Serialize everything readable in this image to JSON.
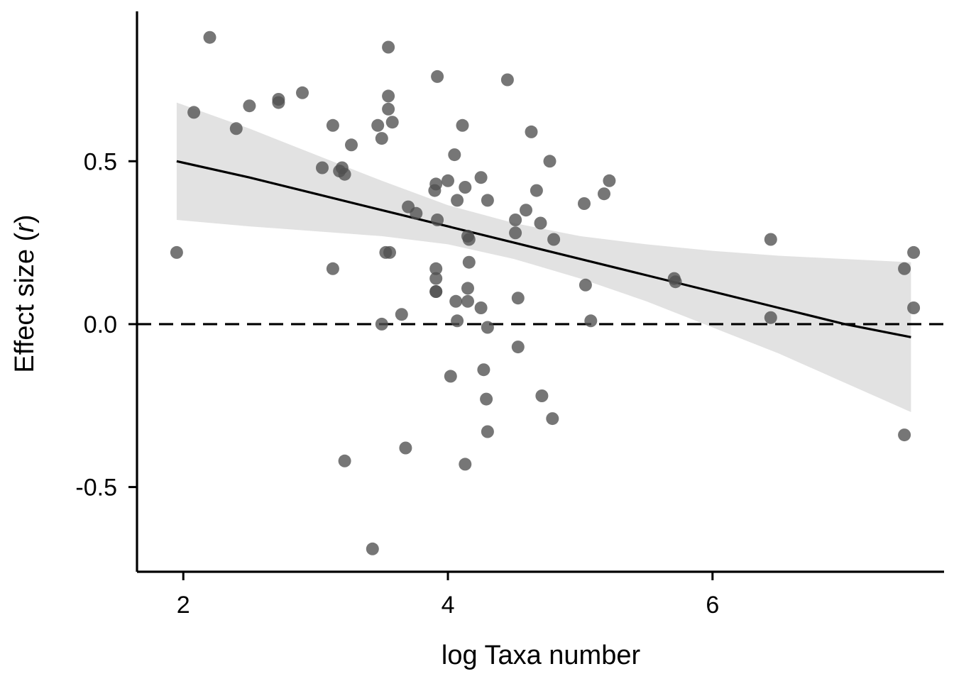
{
  "chart_data": {
    "type": "scatter",
    "title": "",
    "xlabel": "log Taxa number",
    "ylabel_prefix": "Effect size (",
    "ylabel_var": "r",
    "ylabel_suffix": ")",
    "xlim": [
      1.65,
      7.75
    ],
    "ylim": [
      -0.76,
      0.96
    ],
    "xticks": [
      2,
      4,
      6
    ],
    "xtick_labels": [
      "2",
      "4",
      "6"
    ],
    "yticks": [
      -0.5,
      0.0,
      0.5
    ],
    "ytick_labels": [
      "-0.5",
      "0.0",
      "0.5"
    ],
    "reference_line": {
      "y": 0.0,
      "style": "dashed"
    },
    "fit": {
      "x": [
        1.95,
        2.5,
        3.0,
        3.5,
        4.0,
        4.5,
        5.0,
        5.5,
        6.0,
        6.5,
        7.0,
        7.5
      ],
      "y": [
        0.5,
        0.45,
        0.4,
        0.35,
        0.3,
        0.25,
        0.2,
        0.15,
        0.1,
        0.05,
        0.0,
        -0.04
      ],
      "lower": [
        0.32,
        0.3,
        0.285,
        0.27,
        0.245,
        0.2,
        0.14,
        0.07,
        -0.01,
        -0.09,
        -0.18,
        -0.27
      ],
      "upper": [
        0.68,
        0.6,
        0.52,
        0.44,
        0.365,
        0.31,
        0.27,
        0.245,
        0.225,
        0.21,
        0.2,
        0.19
      ]
    },
    "points": [
      [
        1.95,
        0.22
      ],
      [
        2.08,
        0.65
      ],
      [
        2.2,
        0.88
      ],
      [
        2.4,
        0.6
      ],
      [
        2.5,
        0.67
      ],
      [
        2.72,
        0.69
      ],
      [
        2.72,
        0.68
      ],
      [
        2.9,
        0.71
      ],
      [
        3.05,
        0.48
      ],
      [
        3.13,
        0.61
      ],
      [
        3.13,
        0.17
      ],
      [
        3.18,
        0.47
      ],
      [
        3.2,
        0.48
      ],
      [
        3.22,
        0.46
      ],
      [
        3.22,
        -0.42
      ],
      [
        3.27,
        0.55
      ],
      [
        3.43,
        -0.69
      ],
      [
        3.47,
        0.61
      ],
      [
        3.5,
        0.57
      ],
      [
        3.5,
        0.0
      ],
      [
        3.53,
        0.22
      ],
      [
        3.55,
        0.85
      ],
      [
        3.55,
        0.7
      ],
      [
        3.55,
        0.66
      ],
      [
        3.56,
        0.22
      ],
      [
        3.58,
        0.62
      ],
      [
        3.65,
        0.03
      ],
      [
        3.68,
        -0.38
      ],
      [
        3.7,
        0.36
      ],
      [
        3.76,
        0.34
      ],
      [
        3.9,
        0.41
      ],
      [
        3.91,
        0.43
      ],
      [
        3.91,
        0.17
      ],
      [
        3.91,
        0.14
      ],
      [
        3.91,
        0.1
      ],
      [
        3.91,
        0.1
      ],
      [
        3.92,
        0.76
      ],
      [
        3.92,
        0.32
      ],
      [
        4.0,
        0.44
      ],
      [
        4.02,
        -0.16
      ],
      [
        4.05,
        0.52
      ],
      [
        4.06,
        0.07
      ],
      [
        4.07,
        0.38
      ],
      [
        4.07,
        0.01
      ],
      [
        4.11,
        0.61
      ],
      [
        4.13,
        0.42
      ],
      [
        4.13,
        -0.43
      ],
      [
        4.15,
        0.27
      ],
      [
        4.15,
        0.11
      ],
      [
        4.15,
        0.07
      ],
      [
        4.16,
        0.26
      ],
      [
        4.16,
        0.19
      ],
      [
        4.25,
        0.45
      ],
      [
        4.25,
        0.05
      ],
      [
        4.27,
        -0.14
      ],
      [
        4.29,
        -0.23
      ],
      [
        4.3,
        0.38
      ],
      [
        4.3,
        -0.01
      ],
      [
        4.3,
        -0.33
      ],
      [
        4.45,
        0.75
      ],
      [
        4.51,
        0.32
      ],
      [
        4.51,
        0.28
      ],
      [
        4.53,
        0.08
      ],
      [
        4.53,
        -0.07
      ],
      [
        4.59,
        0.35
      ],
      [
        4.63,
        0.59
      ],
      [
        4.67,
        0.41
      ],
      [
        4.7,
        0.31
      ],
      [
        4.71,
        -0.22
      ],
      [
        4.77,
        0.5
      ],
      [
        4.79,
        -0.29
      ],
      [
        4.8,
        0.26
      ],
      [
        5.03,
        0.37
      ],
      [
        5.04,
        0.12
      ],
      [
        5.08,
        0.01
      ],
      [
        5.18,
        0.4
      ],
      [
        5.22,
        0.44
      ],
      [
        5.71,
        0.14
      ],
      [
        5.72,
        0.13
      ],
      [
        6.44,
        0.26
      ],
      [
        6.44,
        0.02
      ],
      [
        7.45,
        0.17
      ],
      [
        7.45,
        -0.34
      ],
      [
        7.52,
        0.22
      ],
      [
        7.52,
        0.05
      ]
    ],
    "point_color": "#505050",
    "band_color": "#e2e2e2",
    "line_color": "#000000",
    "grid": false,
    "legend": "none"
  }
}
